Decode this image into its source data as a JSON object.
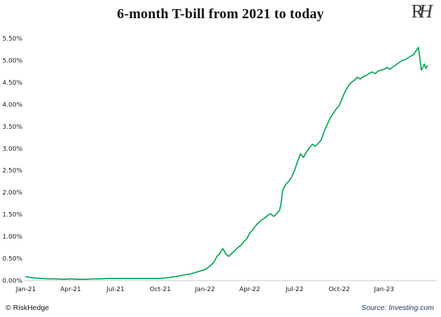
{
  "logo": {
    "r": "R",
    "h": "H"
  },
  "footer": {
    "left": "© RiskHedge",
    "right": "Source: Investing.com"
  },
  "chart_data": {
    "type": "line",
    "title": "6-month T-bill from 2021 to today",
    "series_name": "6-month T-bill yield",
    "line_color": "#00A651",
    "axis_color": "#c9c9c9",
    "grid": false,
    "legend": false,
    "x_unit": "months since Jan-2021",
    "xlim": [
      0,
      27.3
    ],
    "ylim": [
      0,
      5.5
    ],
    "xticks": [
      {
        "value": 0,
        "label": "Jan-21"
      },
      {
        "value": 3,
        "label": "Apr-21"
      },
      {
        "value": 6,
        "label": "Jul-21"
      },
      {
        "value": 9,
        "label": "Oct-21"
      },
      {
        "value": 12,
        "label": "Jan-22"
      },
      {
        "value": 15,
        "label": "Apr-22"
      },
      {
        "value": 18,
        "label": "Jul-22"
      },
      {
        "value": 21,
        "label": "Oct-22"
      },
      {
        "value": 24,
        "label": "Jan-23"
      }
    ],
    "yticks": [
      {
        "value": 0.0,
        "label": "0.00%"
      },
      {
        "value": 0.5,
        "label": "0.50%"
      },
      {
        "value": 1.0,
        "label": "1.00%"
      },
      {
        "value": 1.5,
        "label": "1.50%"
      },
      {
        "value": 2.0,
        "label": "2.00%"
      },
      {
        "value": 2.5,
        "label": "2.50%"
      },
      {
        "value": 3.0,
        "label": "3.00%"
      },
      {
        "value": 3.5,
        "label": "3.50%"
      },
      {
        "value": 4.0,
        "label": "4.00%"
      },
      {
        "value": 4.5,
        "label": "4.50%"
      },
      {
        "value": 5.0,
        "label": "5.00%"
      },
      {
        "value": 5.5,
        "label": "5.50%"
      }
    ],
    "points": [
      [
        0,
        0.09
      ],
      [
        0.3,
        0.07
      ],
      [
        0.6,
        0.06
      ],
      [
        1,
        0.05
      ],
      [
        1.5,
        0.04
      ],
      [
        2,
        0.04
      ],
      [
        2.5,
        0.03
      ],
      [
        3,
        0.04
      ],
      [
        3.5,
        0.03
      ],
      [
        4,
        0.03
      ],
      [
        4.5,
        0.04
      ],
      [
        5,
        0.04
      ],
      [
        5.5,
        0.05
      ],
      [
        6,
        0.05
      ],
      [
        6.5,
        0.05
      ],
      [
        7,
        0.05
      ],
      [
        7.5,
        0.05
      ],
      [
        8,
        0.05
      ],
      [
        8.5,
        0.05
      ],
      [
        9,
        0.05
      ],
      [
        9.3,
        0.06
      ],
      [
        9.6,
        0.07
      ],
      [
        10,
        0.09
      ],
      [
        10.3,
        0.11
      ],
      [
        10.6,
        0.13
      ],
      [
        11,
        0.15
      ],
      [
        11.3,
        0.18
      ],
      [
        11.6,
        0.21
      ],
      [
        12,
        0.25
      ],
      [
        12.3,
        0.32
      ],
      [
        12.6,
        0.42
      ],
      [
        12.8,
        0.55
      ],
      [
        13,
        0.62
      ],
      [
        13.1,
        0.68
      ],
      [
        13.2,
        0.73
      ],
      [
        13.4,
        0.6
      ],
      [
        13.6,
        0.55
      ],
      [
        13.8,
        0.62
      ],
      [
        14,
        0.68
      ],
      [
        14.2,
        0.75
      ],
      [
        14.4,
        0.8
      ],
      [
        14.6,
        0.88
      ],
      [
        14.8,
        0.95
      ],
      [
        15,
        1.08
      ],
      [
        15.2,
        1.15
      ],
      [
        15.4,
        1.25
      ],
      [
        15.6,
        1.32
      ],
      [
        15.8,
        1.38
      ],
      [
        16,
        1.42
      ],
      [
        16.2,
        1.48
      ],
      [
        16.4,
        1.52
      ],
      [
        16.6,
        1.46
      ],
      [
        16.8,
        1.52
      ],
      [
        17,
        1.6
      ],
      [
        17.1,
        1.75
      ],
      [
        17.2,
        2.05
      ],
      [
        17.4,
        2.18
      ],
      [
        17.6,
        2.25
      ],
      [
        17.8,
        2.35
      ],
      [
        18,
        2.5
      ],
      [
        18.2,
        2.7
      ],
      [
        18.4,
        2.88
      ],
      [
        18.6,
        2.8
      ],
      [
        18.8,
        2.92
      ],
      [
        19,
        3.02
      ],
      [
        19.2,
        3.1
      ],
      [
        19.4,
        3.05
      ],
      [
        19.6,
        3.12
      ],
      [
        19.8,
        3.2
      ],
      [
        20,
        3.4
      ],
      [
        20.2,
        3.55
      ],
      [
        20.4,
        3.7
      ],
      [
        20.6,
        3.8
      ],
      [
        20.8,
        3.9
      ],
      [
        21,
        3.98
      ],
      [
        21.2,
        4.15
      ],
      [
        21.4,
        4.3
      ],
      [
        21.6,
        4.42
      ],
      [
        21.8,
        4.5
      ],
      [
        22,
        4.55
      ],
      [
        22.2,
        4.62
      ],
      [
        22.4,
        4.58
      ],
      [
        22.6,
        4.63
      ],
      [
        22.8,
        4.66
      ],
      [
        23,
        4.7
      ],
      [
        23.2,
        4.74
      ],
      [
        23.4,
        4.7
      ],
      [
        23.6,
        4.76
      ],
      [
        23.8,
        4.78
      ],
      [
        24,
        4.8
      ],
      [
        24.2,
        4.84
      ],
      [
        24.4,
        4.8
      ],
      [
        24.6,
        4.86
      ],
      [
        24.8,
        4.9
      ],
      [
        25,
        4.95
      ],
      [
        25.2,
        5.0
      ],
      [
        25.4,
        5.02
      ],
      [
        25.6,
        5.06
      ],
      [
        25.8,
        5.1
      ],
      [
        26,
        5.14
      ],
      [
        26.1,
        5.2
      ],
      [
        26.2,
        5.25
      ],
      [
        26.3,
        5.3
      ],
      [
        26.4,
        5.05
      ],
      [
        26.5,
        4.78
      ],
      [
        26.6,
        4.85
      ],
      [
        26.7,
        4.92
      ],
      [
        26.8,
        4.82
      ],
      [
        26.9,
        4.88
      ]
    ]
  }
}
